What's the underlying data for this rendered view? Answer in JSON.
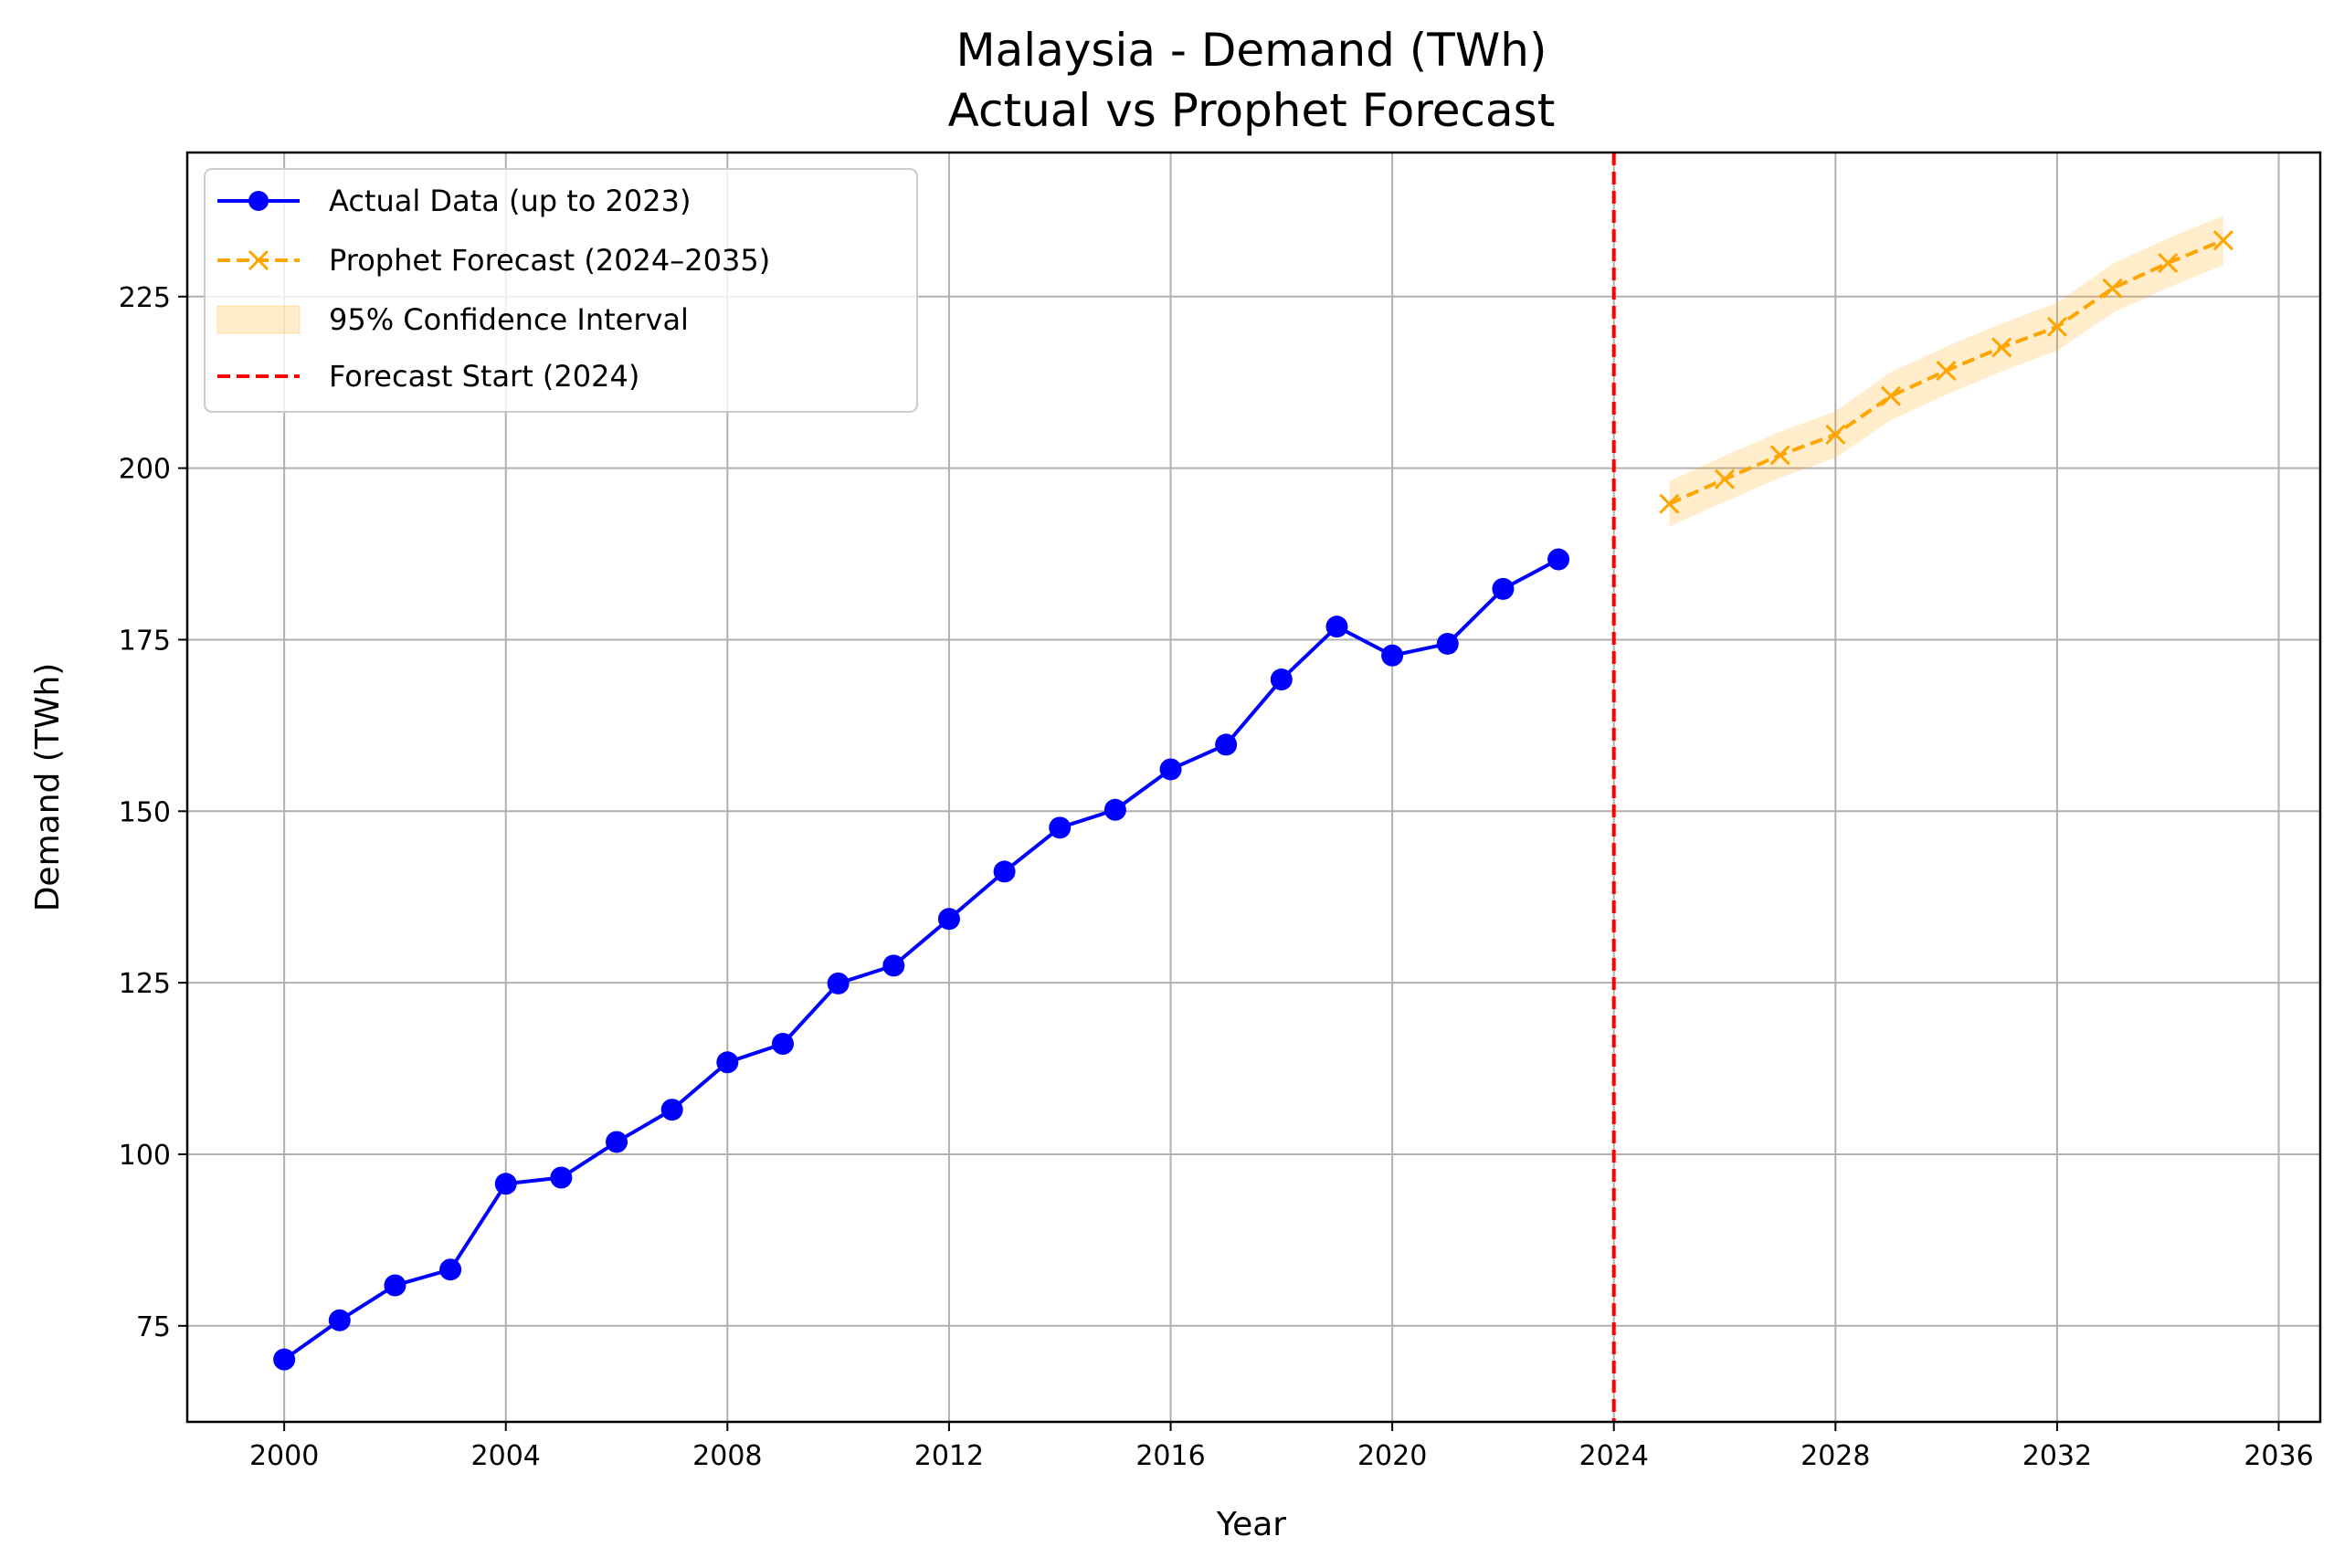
{
  "chart_data": {
    "type": "line",
    "title": "Malaysia - Demand (TWh)",
    "subtitle": "Actual vs Prophet Forecast",
    "xlabel": "Year",
    "ylabel": "Demand (TWh)",
    "xlim": [
      1998.25,
      2036.75
    ],
    "ylim": [
      61,
      246
    ],
    "x_ticks": [
      2000,
      2004,
      2008,
      2012,
      2016,
      2020,
      2024,
      2028,
      2032,
      2036
    ],
    "y_ticks": [
      75,
      100,
      125,
      150,
      175,
      200,
      225
    ],
    "grid": true,
    "legend_position": "top-left",
    "series": [
      {
        "name": "Actual Data (up to 2023)",
        "color": "#0000ff",
        "style": "solid",
        "marker": "circle",
        "x": [
          2000,
          2001,
          2002,
          2003,
          2004,
          2005,
          2006,
          2007,
          2008,
          2009,
          2010,
          2011,
          2012,
          2013,
          2014,
          2015,
          2016,
          2017,
          2018,
          2019,
          2020,
          2021,
          2022,
          2023
        ],
        "values": [
          70.1,
          75.8,
          80.9,
          83.2,
          95.7,
          96.6,
          101.8,
          106.5,
          113.4,
          116.1,
          124.9,
          127.5,
          134.3,
          141.2,
          147.6,
          150.2,
          156.1,
          159.7,
          169.2,
          176.9,
          172.7,
          174.4,
          182.4,
          186.7
        ]
      },
      {
        "name": "Prophet Forecast (2024–2035)",
        "color": "#ffa500",
        "style": "dashed",
        "marker": "x",
        "x": [
          2025,
          2026,
          2027,
          2028,
          2029,
          2030,
          2031,
          2032,
          2033,
          2034,
          2035
        ],
        "values": [
          194.8,
          198.4,
          201.9,
          204.9,
          210.5,
          214.2,
          217.6,
          220.6,
          226.2,
          229.9,
          233.2
        ]
      }
    ],
    "confidence_interval": {
      "name": "95% Confidence Interval",
      "color": "#ffa500",
      "x": [
        2025,
        2026,
        2027,
        2028,
        2029,
        2030,
        2031,
        2032,
        2033,
        2034,
        2035
      ],
      "lower": [
        191.5,
        195.1,
        198.6,
        201.5,
        207.0,
        210.7,
        214.1,
        217.1,
        222.6,
        226.3,
        229.6
      ],
      "upper": [
        198.1,
        201.8,
        205.3,
        208.3,
        214.0,
        217.7,
        221.1,
        224.1,
        229.8,
        233.5,
        236.8
      ]
    },
    "vertical_line": {
      "name": "Forecast Start (2024)",
      "x": 2024,
      "color": "#ff0000",
      "style": "dashed"
    }
  }
}
